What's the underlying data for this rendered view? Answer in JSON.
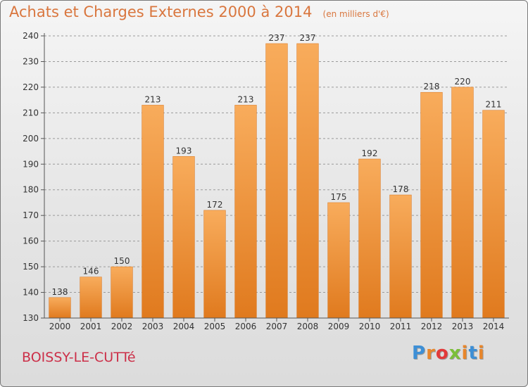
{
  "header": {
    "title": "Achats et Charges Externes 2000 à 2014",
    "subtitle": "(en milliers d'€)"
  },
  "footer": {
    "commune": "BOISSY-LE-CUTTé",
    "logo_text": "Proxiti",
    "logo_colors": [
      "#3d8fd6",
      "#e8862b",
      "#e23a3a",
      "#7cbf3a",
      "#e8862b",
      "#3d8fd6",
      "#e8862b"
    ]
  },
  "colors": {
    "bar_top": "#f8ac5c",
    "bar_bottom": "#e07a1e",
    "title": "#d9763e",
    "commune": "#cc2f48",
    "grid": "#9a9a9a"
  },
  "chart_data": {
    "type": "bar",
    "title": "Achats et Charges Externes 2000 à 2014",
    "subtitle": "(en milliers d'€)",
    "xlabel": "",
    "ylabel": "",
    "categories": [
      "2000",
      "2001",
      "2002",
      "2003",
      "2004",
      "2005",
      "2006",
      "2007",
      "2008",
      "2009",
      "2010",
      "2011",
      "2012",
      "2013",
      "2014"
    ],
    "values": [
      138,
      146,
      150,
      213,
      193,
      172,
      213,
      237,
      237,
      175,
      192,
      178,
      218,
      220,
      211
    ],
    "ylim": [
      130,
      240
    ],
    "yticks": [
      130,
      140,
      150,
      160,
      170,
      180,
      190,
      200,
      210,
      220,
      230,
      240
    ],
    "grid": true,
    "grid_style": "dashed-horizontal",
    "data_labels": true,
    "legend": "none"
  }
}
